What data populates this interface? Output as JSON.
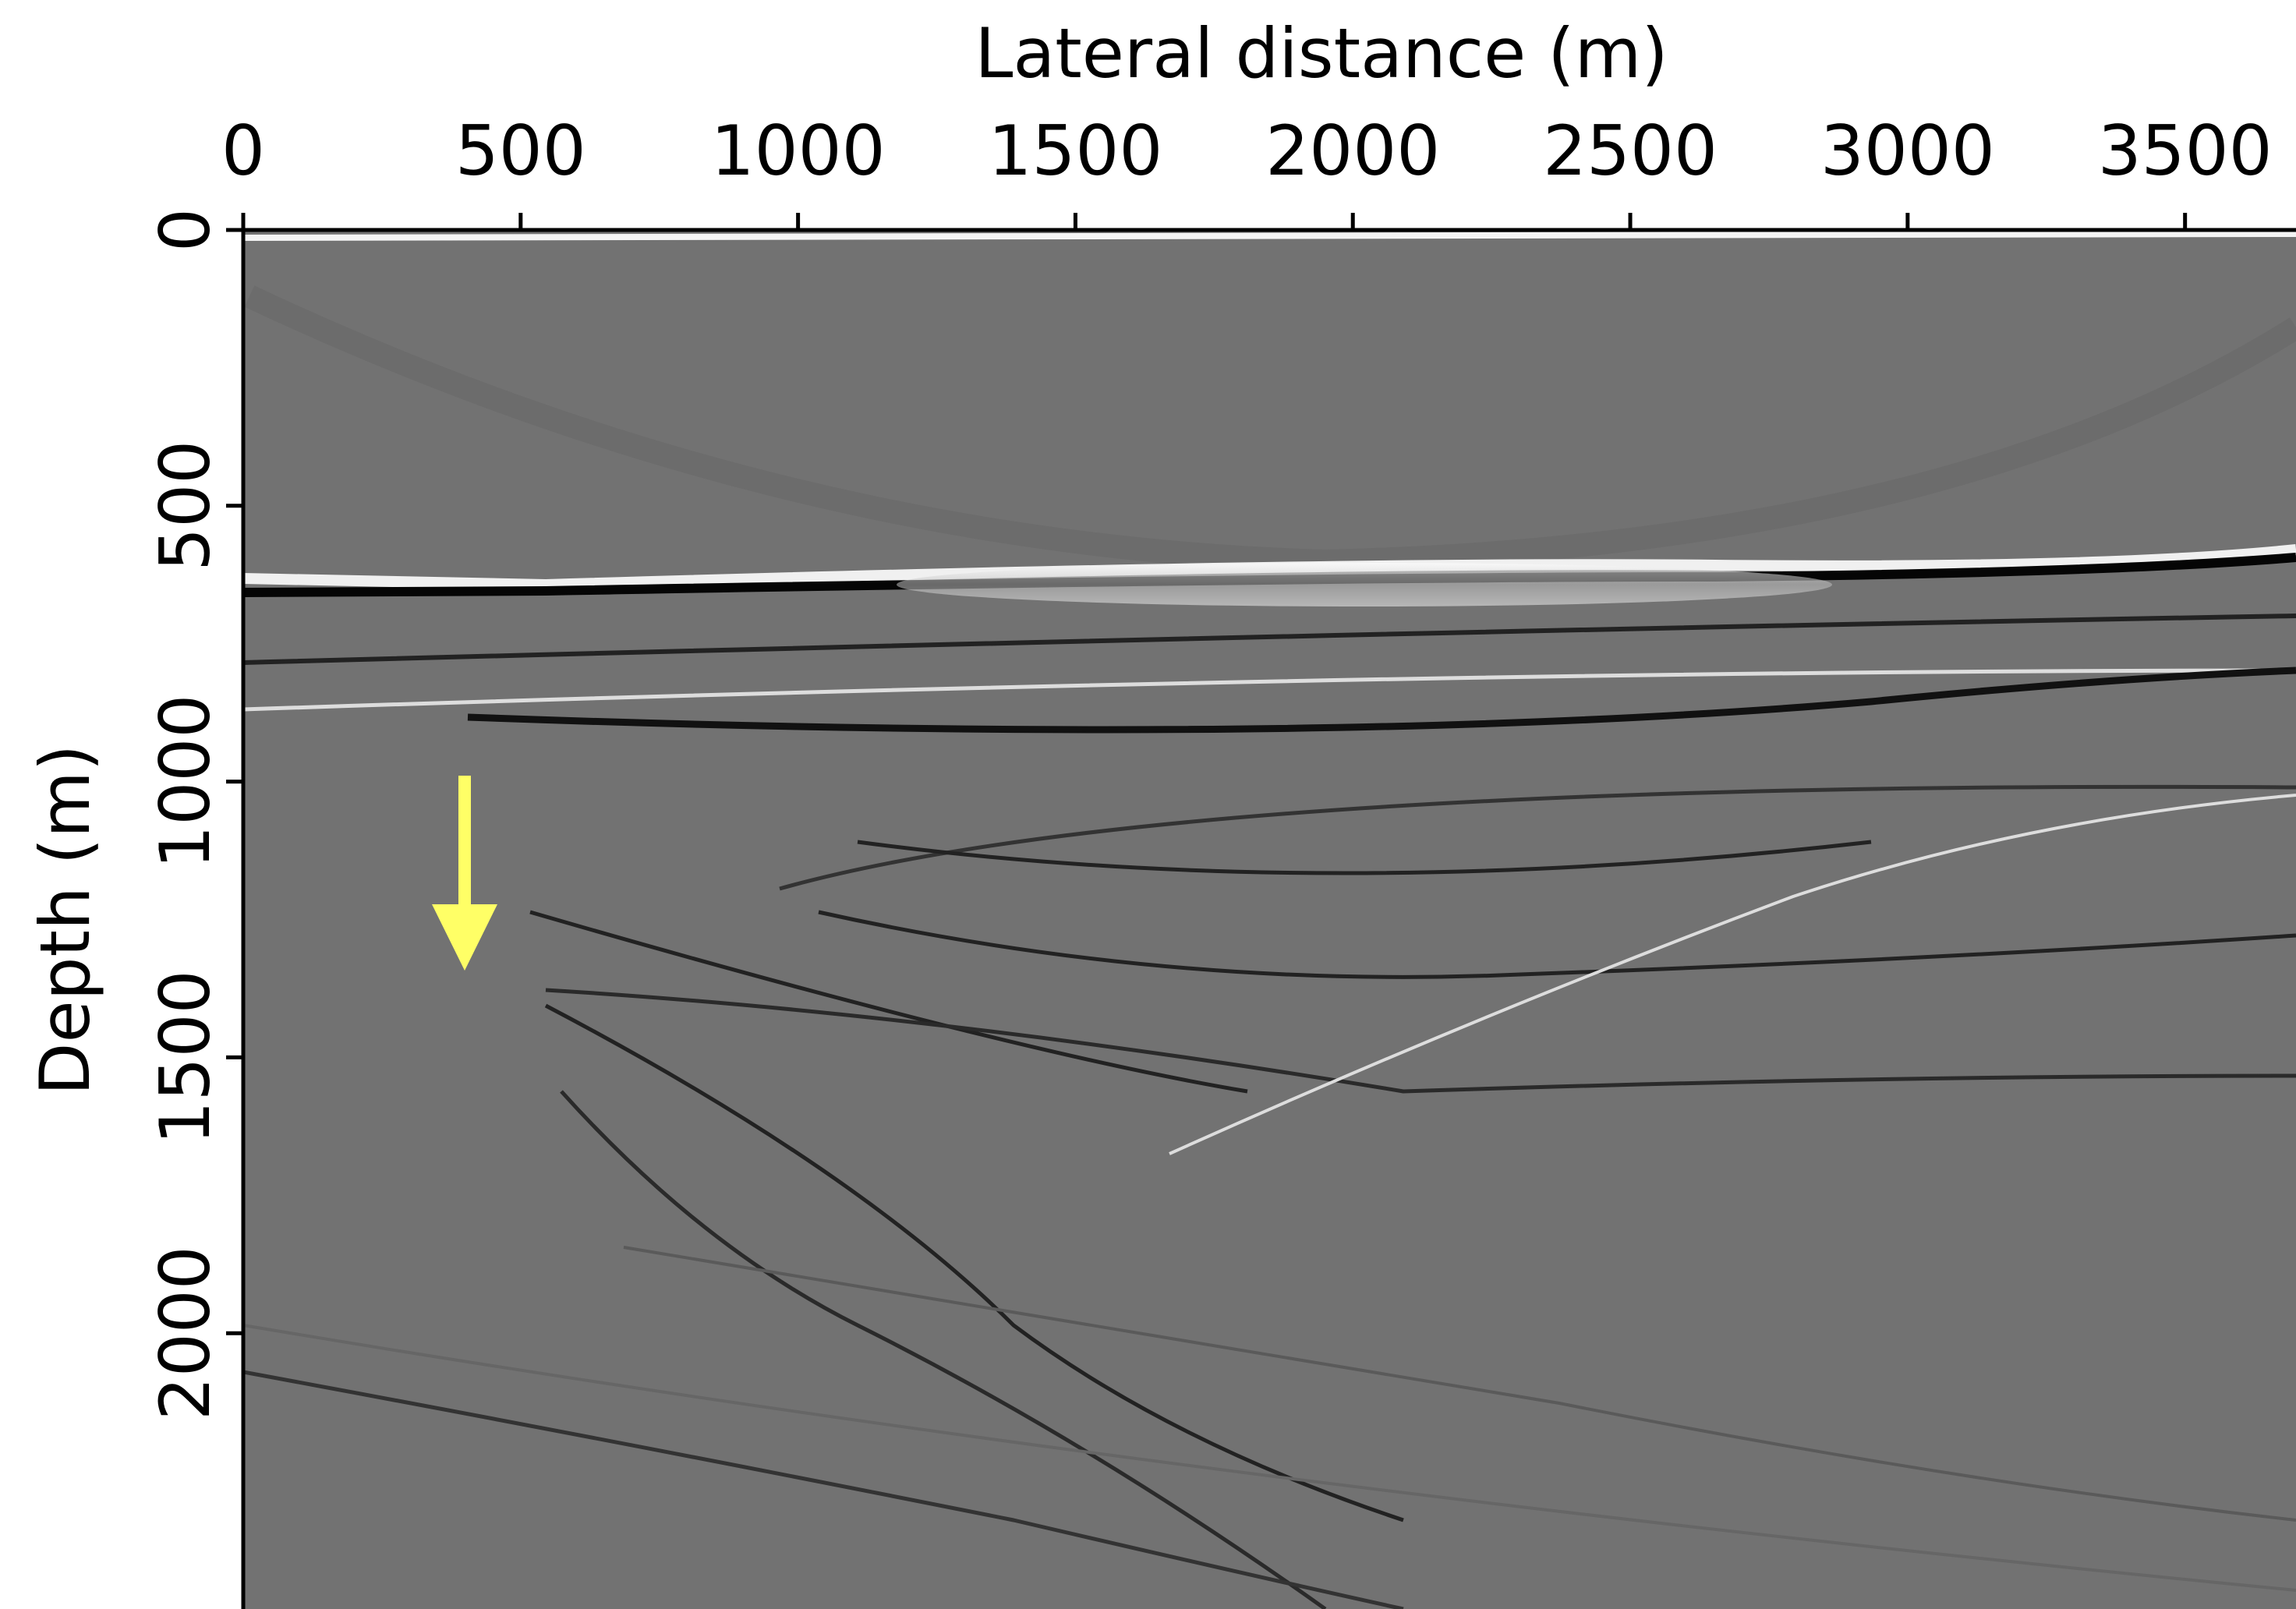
{
  "chart_data": {
    "type": "seismic",
    "xlabel": "Lateral distance (m)",
    "ylabel": "Depth (m)",
    "xlim": [
      0,
      3700
    ],
    "xticks": [
      0,
      500,
      1000,
      1500,
      2000,
      2500,
      3000,
      3500
    ],
    "ylim": [
      0,
      2500
    ],
    "yticks": [
      0,
      500,
      1000,
      1500,
      2000
    ],
    "y_inverted": true
  }
}
